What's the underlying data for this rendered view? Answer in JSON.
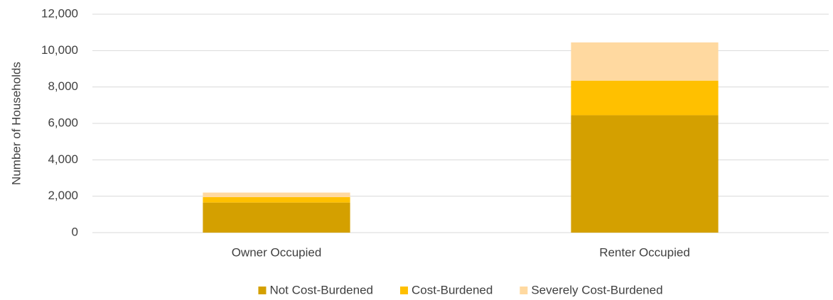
{
  "chart_data": {
    "type": "stacked_bar",
    "y_label": "Number of Households",
    "categories": [
      "Owner Occupied",
      "Renter Occupied"
    ],
    "series": [
      {
        "name": "Not Cost-Burdened",
        "color": "#d4a000",
        "values": [
          1650,
          6450
        ]
      },
      {
        "name": "Cost-Burdened",
        "color": "#ffc000",
        "values": [
          300,
          1900
        ]
      },
      {
        "name": "Severely Cost-Burdened",
        "color": "#ffd9a0",
        "values": [
          250,
          2100
        ]
      }
    ],
    "ylim": [
      0,
      12000
    ],
    "yticks": [
      0,
      {
        "value": 2000,
        "label": "2,000"
      },
      {
        "value": 4000,
        "label": "4,000"
      },
      {
        "value": 6000,
        "label": "6,000"
      },
      {
        "value": 8000,
        "label": "8,000"
      },
      {
        "value": 10000,
        "label": "10,000"
      },
      {
        "value": 12000,
        "label": "12,000"
      }
    ],
    "grid": true,
    "legend": "bottom"
  }
}
